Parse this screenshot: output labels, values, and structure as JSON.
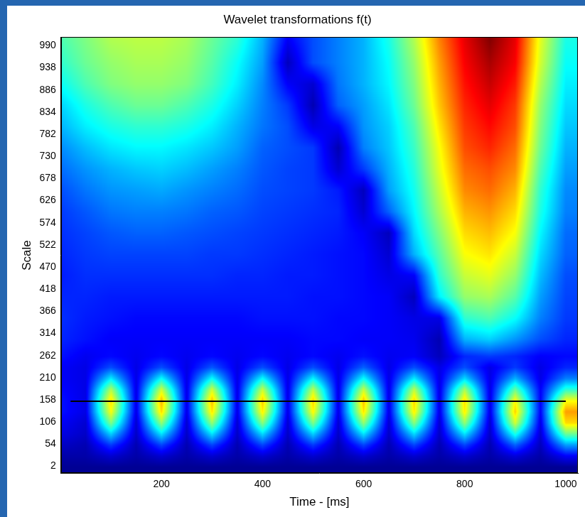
{
  "chart_data": {
    "type": "heatmap",
    "title": "Wavelet transformations f(t)",
    "x_label": "Time - [ms]",
    "y_label": "Scale",
    "xlim": [
      1,
      1024
    ],
    "ylim": [
      -15,
      1010
    ],
    "xticks": [
      200,
      400,
      600,
      800,
      1000
    ],
    "yticks": [
      2,
      54,
      106,
      158,
      210,
      262,
      314,
      366,
      418,
      470,
      522,
      574,
      626,
      678,
      730,
      782,
      834,
      886,
      938,
      990
    ],
    "grid": false,
    "zlim": [
      0,
      1
    ],
    "x": [
      0,
      50,
      100,
      150,
      200,
      250,
      300,
      350,
      400,
      450,
      500,
      550,
      600,
      650,
      700,
      750,
      800,
      850,
      900,
      950,
      1000
    ],
    "y": [
      0,
      26,
      52,
      78,
      104,
      130,
      156,
      182,
      208,
      234,
      260,
      300,
      350,
      400,
      450,
      500,
      550,
      600,
      650,
      700,
      750,
      800,
      850,
      900,
      950,
      1010
    ],
    "cells": [
      [
        0.02,
        0.02,
        0.02,
        0.02,
        0.02,
        0.02,
        0.02,
        0.02,
        0.02,
        0.02,
        0.02,
        0.02,
        0.02,
        0.02,
        0.02,
        0.02,
        0.02,
        0.02,
        0.02,
        0.02,
        0.02
      ],
      [
        0.04,
        0.04,
        0.08,
        0.04,
        0.08,
        0.04,
        0.08,
        0.04,
        0.08,
        0.04,
        0.08,
        0.04,
        0.08,
        0.04,
        0.08,
        0.04,
        0.08,
        0.04,
        0.09,
        0.04,
        0.12
      ],
      [
        0.07,
        0.05,
        0.18,
        0.05,
        0.19,
        0.05,
        0.19,
        0.05,
        0.19,
        0.05,
        0.18,
        0.05,
        0.19,
        0.05,
        0.19,
        0.05,
        0.19,
        0.05,
        0.22,
        0.06,
        0.28
      ],
      [
        0.1,
        0.07,
        0.33,
        0.07,
        0.35,
        0.07,
        0.35,
        0.07,
        0.34,
        0.07,
        0.33,
        0.07,
        0.35,
        0.07,
        0.34,
        0.07,
        0.35,
        0.07,
        0.4,
        0.08,
        0.48
      ],
      [
        0.12,
        0.08,
        0.5,
        0.08,
        0.52,
        0.08,
        0.52,
        0.08,
        0.51,
        0.08,
        0.5,
        0.08,
        0.52,
        0.08,
        0.51,
        0.08,
        0.52,
        0.08,
        0.58,
        0.1,
        0.66
      ],
      [
        0.14,
        0.1,
        0.62,
        0.1,
        0.66,
        0.1,
        0.65,
        0.1,
        0.64,
        0.1,
        0.63,
        0.1,
        0.65,
        0.1,
        0.64,
        0.1,
        0.64,
        0.1,
        0.67,
        0.12,
        0.72
      ],
      [
        0.14,
        0.1,
        0.66,
        0.1,
        0.7,
        0.1,
        0.69,
        0.1,
        0.68,
        0.1,
        0.67,
        0.1,
        0.69,
        0.1,
        0.67,
        0.1,
        0.66,
        0.1,
        0.63,
        0.12,
        0.62
      ],
      [
        0.13,
        0.1,
        0.55,
        0.1,
        0.58,
        0.1,
        0.58,
        0.1,
        0.57,
        0.1,
        0.56,
        0.1,
        0.57,
        0.1,
        0.56,
        0.1,
        0.54,
        0.1,
        0.48,
        0.12,
        0.42
      ],
      [
        0.12,
        0.1,
        0.36,
        0.1,
        0.38,
        0.1,
        0.38,
        0.1,
        0.38,
        0.1,
        0.37,
        0.1,
        0.38,
        0.1,
        0.36,
        0.1,
        0.34,
        0.1,
        0.3,
        0.1,
        0.25
      ],
      [
        0.12,
        0.1,
        0.2,
        0.1,
        0.2,
        0.1,
        0.21,
        0.1,
        0.2,
        0.1,
        0.2,
        0.1,
        0.22,
        0.1,
        0.2,
        0.1,
        0.2,
        0.1,
        0.18,
        0.1,
        0.16
      ],
      [
        0.14,
        0.11,
        0.13,
        0.11,
        0.13,
        0.11,
        0.13,
        0.11,
        0.13,
        0.11,
        0.13,
        0.11,
        0.14,
        0.11,
        0.12,
        0.06,
        0.16,
        0.18,
        0.16,
        0.12,
        0.13
      ],
      [
        0.16,
        0.14,
        0.12,
        0.12,
        0.12,
        0.12,
        0.12,
        0.12,
        0.12,
        0.12,
        0.13,
        0.13,
        0.12,
        0.12,
        0.11,
        0.05,
        0.3,
        0.33,
        0.27,
        0.2,
        0.16
      ],
      [
        0.17,
        0.15,
        0.14,
        0.13,
        0.13,
        0.13,
        0.13,
        0.13,
        0.14,
        0.14,
        0.14,
        0.13,
        0.13,
        0.12,
        0.1,
        0.1,
        0.42,
        0.45,
        0.38,
        0.25,
        0.18
      ],
      [
        0.16,
        0.16,
        0.15,
        0.15,
        0.15,
        0.15,
        0.15,
        0.15,
        0.15,
        0.15,
        0.14,
        0.14,
        0.13,
        0.12,
        0.06,
        0.36,
        0.52,
        0.54,
        0.46,
        0.28,
        0.19
      ],
      [
        0.15,
        0.17,
        0.17,
        0.17,
        0.17,
        0.17,
        0.17,
        0.16,
        0.16,
        0.15,
        0.15,
        0.14,
        0.13,
        0.1,
        0.12,
        0.42,
        0.57,
        0.6,
        0.52,
        0.31,
        0.2
      ],
      [
        0.16,
        0.18,
        0.19,
        0.19,
        0.19,
        0.19,
        0.18,
        0.18,
        0.17,
        0.16,
        0.15,
        0.14,
        0.13,
        0.08,
        0.3,
        0.46,
        0.62,
        0.65,
        0.57,
        0.34,
        0.22
      ],
      [
        0.17,
        0.19,
        0.21,
        0.22,
        0.22,
        0.21,
        0.2,
        0.19,
        0.18,
        0.17,
        0.16,
        0.15,
        0.12,
        0.06,
        0.34,
        0.5,
        0.66,
        0.69,
        0.62,
        0.37,
        0.23
      ],
      [
        0.18,
        0.21,
        0.24,
        0.25,
        0.25,
        0.24,
        0.22,
        0.21,
        0.19,
        0.18,
        0.17,
        0.16,
        0.08,
        0.22,
        0.37,
        0.54,
        0.7,
        0.73,
        0.66,
        0.4,
        0.25
      ],
      [
        0.2,
        0.24,
        0.27,
        0.28,
        0.29,
        0.27,
        0.25,
        0.23,
        0.2,
        0.19,
        0.18,
        0.15,
        0.06,
        0.28,
        0.39,
        0.57,
        0.74,
        0.77,
        0.7,
        0.42,
        0.26
      ],
      [
        0.23,
        0.27,
        0.3,
        0.32,
        0.33,
        0.31,
        0.28,
        0.25,
        0.21,
        0.19,
        0.18,
        0.08,
        0.18,
        0.3,
        0.41,
        0.6,
        0.77,
        0.8,
        0.74,
        0.45,
        0.28
      ],
      [
        0.26,
        0.31,
        0.35,
        0.37,
        0.37,
        0.35,
        0.32,
        0.28,
        0.22,
        0.2,
        0.18,
        0.05,
        0.25,
        0.32,
        0.43,
        0.62,
        0.8,
        0.84,
        0.77,
        0.48,
        0.3
      ],
      [
        0.3,
        0.36,
        0.4,
        0.42,
        0.42,
        0.4,
        0.36,
        0.3,
        0.24,
        0.2,
        0.1,
        0.12,
        0.27,
        0.33,
        0.45,
        0.65,
        0.82,
        0.87,
        0.8,
        0.5,
        0.32
      ],
      [
        0.33,
        0.4,
        0.45,
        0.48,
        0.48,
        0.45,
        0.4,
        0.33,
        0.25,
        0.18,
        0.05,
        0.22,
        0.28,
        0.35,
        0.48,
        0.68,
        0.84,
        0.9,
        0.82,
        0.52,
        0.34
      ],
      [
        0.38,
        0.45,
        0.5,
        0.52,
        0.52,
        0.5,
        0.44,
        0.36,
        0.26,
        0.12,
        0.08,
        0.24,
        0.3,
        0.37,
        0.5,
        0.7,
        0.86,
        0.93,
        0.85,
        0.55,
        0.36
      ],
      [
        0.42,
        0.48,
        0.52,
        0.54,
        0.54,
        0.52,
        0.46,
        0.38,
        0.28,
        0.06,
        0.2,
        0.25,
        0.3,
        0.38,
        0.52,
        0.72,
        0.88,
        0.96,
        0.88,
        0.58,
        0.38
      ],
      [
        0.45,
        0.5,
        0.55,
        0.56,
        0.56,
        0.54,
        0.48,
        0.42,
        0.3,
        0.12,
        0.2,
        0.25,
        0.3,
        0.4,
        0.55,
        0.75,
        0.9,
        1.0,
        0.9,
        0.6,
        0.4
      ]
    ],
    "reference_line": {
      "y": 155,
      "x": [
        20,
        1000
      ],
      "color": "#000000"
    }
  }
}
